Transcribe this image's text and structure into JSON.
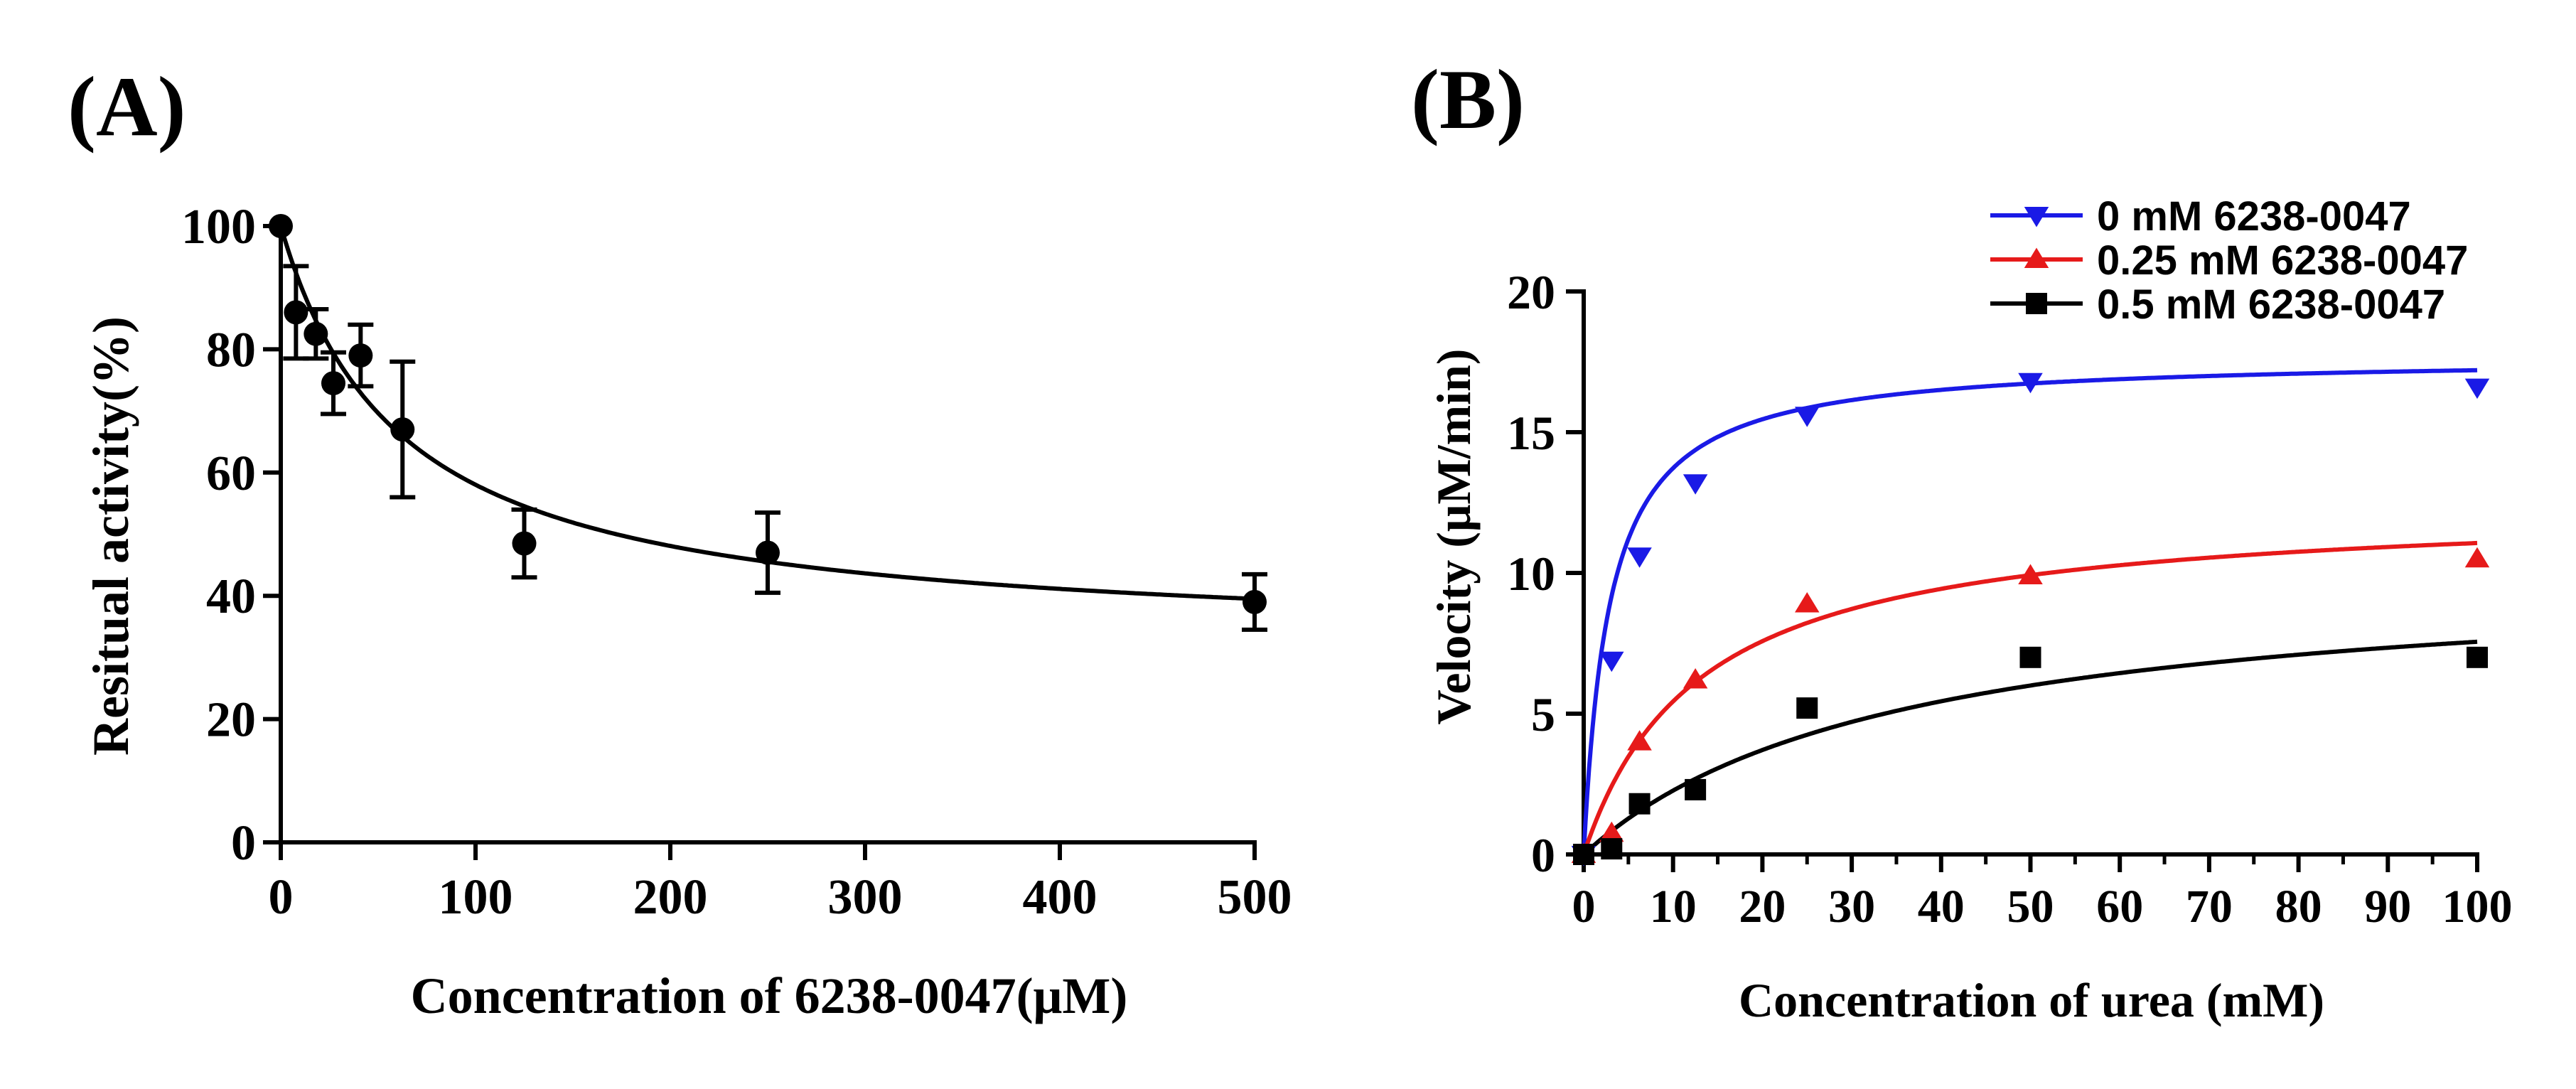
{
  "chart_data": [
    {
      "panel_label": "(A)",
      "type": "scatter",
      "title": "",
      "xlabel": "Concentration of 6238-0047(μM)",
      "ylabel": "Resitual activity(%)",
      "xlim": [
        0,
        500
      ],
      "ylim": [
        0,
        100
      ],
      "xticks": [
        0,
        100,
        200,
        300,
        400,
        500
      ],
      "yticks": [
        0,
        20,
        40,
        60,
        80,
        100
      ],
      "grid": false,
      "color": "#000000",
      "series": [
        {
          "name": "Residual activity",
          "x": [
            0,
            7.8,
            18,
            27,
            41,
            62.5,
            125,
            250,
            500
          ],
          "y": [
            100,
            86,
            82.5,
            74.5,
            79,
            67,
            48.5,
            47,
            39
          ],
          "error": [
            0,
            7.5,
            4,
            5,
            5,
            11,
            5.5,
            6.5,
            4.5
          ]
        }
      ],
      "fit": {
        "model": "y = bottom + (100 - bottom) * IC50 / (IC50 + x)",
        "bottom": 32,
        "ic50": 62
      }
    },
    {
      "panel_label": "(B)",
      "type": "scatter",
      "title": "",
      "xlabel": "Concentration of urea (mM)",
      "ylabel": "Velocity (μM/min)",
      "xlim": [
        0,
        100
      ],
      "ylim": [
        0,
        20
      ],
      "xticks": [
        0,
        10,
        20,
        30,
        40,
        50,
        60,
        70,
        80,
        90,
        100
      ],
      "yticks": [
        0,
        5,
        10,
        15,
        20
      ],
      "grid": false,
      "legend_position": "top-right",
      "series": [
        {
          "name": "0 mM 6238-0047",
          "color": "#1a1ae6",
          "marker": "triangle-down",
          "x": [
            0,
            3.125,
            6.25,
            12.5,
            25,
            50,
            100
          ],
          "y": [
            0,
            6.9,
            10.6,
            13.2,
            15.6,
            16.8,
            16.6
          ],
          "fit": {
            "vmax": 17.7,
            "km": 2.9
          }
        },
        {
          "name": "0.25 mM 6238-0047",
          "color": "#e61a1a",
          "marker": "triangle-up",
          "x": [
            0,
            3.125,
            6.25,
            12.5,
            25,
            50,
            100
          ],
          "y": [
            0,
            0.75,
            4.0,
            6.2,
            8.9,
            9.9,
            10.5
          ],
          "fit": {
            "vmax": 12.5,
            "km": 13.0
          }
        },
        {
          "name": "0.5 mM 6238-0047",
          "color": "#000000",
          "marker": "square",
          "x": [
            0,
            3.125,
            6.25,
            12.5,
            25,
            50,
            100
          ],
          "y": [
            0,
            0.2,
            1.8,
            2.3,
            5.2,
            7.0,
            7.0
          ],
          "fit": {
            "vmax": 10.2,
            "km": 35.0
          }
        }
      ]
    }
  ]
}
